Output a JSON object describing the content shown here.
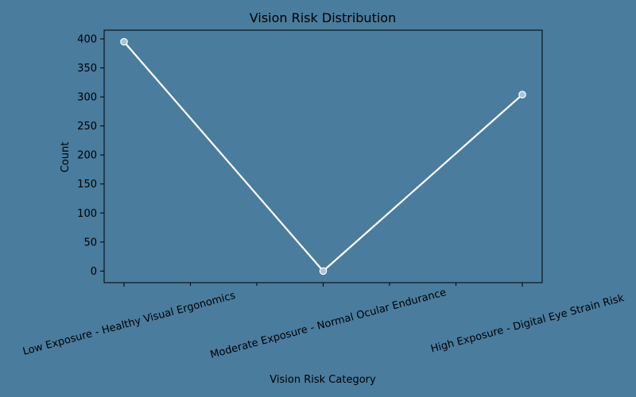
{
  "chart_data": {
    "type": "line",
    "title": "Vision Risk Distribution",
    "xlabel": "Vision Risk Category",
    "ylabel": "Count",
    "categories": [
      "Low Exposure - Healthy Visual Ergonomics",
      "Moderate Exposure - Normal Ocular Endurance",
      "High Exposure - Digital Eye Strain Risk"
    ],
    "values": [
      395,
      0,
      304
    ],
    "ylim": [
      -20,
      415
    ],
    "yticks": [
      0,
      50,
      100,
      150,
      200,
      250,
      300,
      350,
      400
    ],
    "grid": false,
    "legend": "none",
    "colors": {
      "background": "#4a7c9d",
      "line": "#ffffff",
      "marker_fill": "#a9c4d6",
      "axes": "#000000"
    }
  }
}
